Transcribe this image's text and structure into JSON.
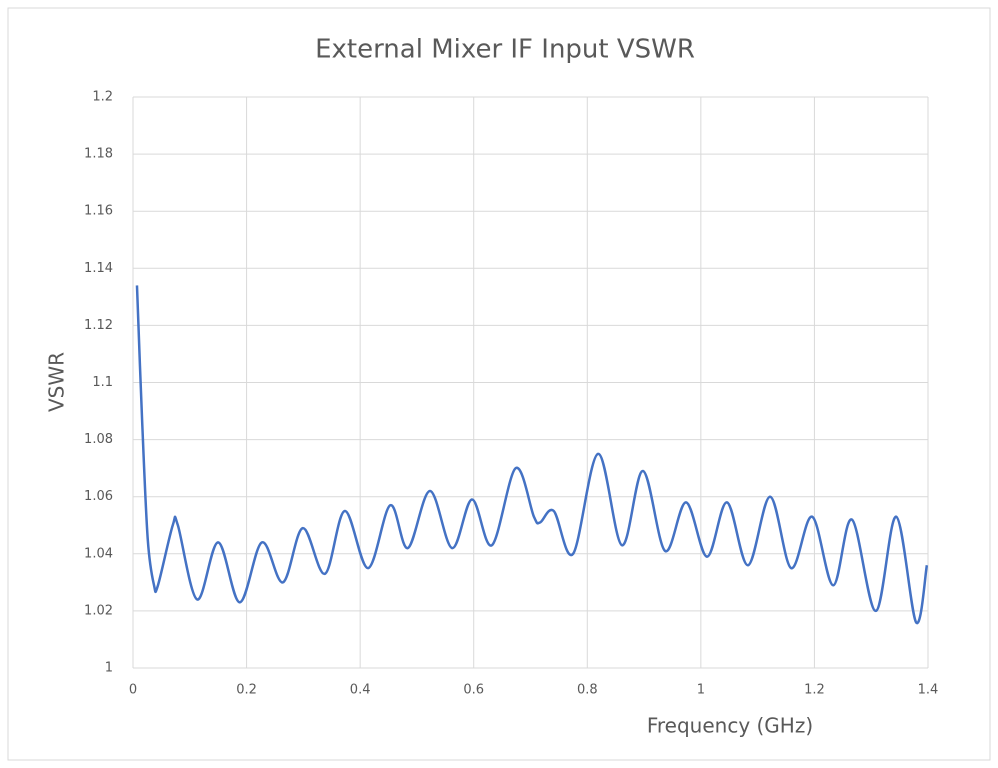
{
  "chart_data": {
    "type": "line",
    "title": "External Mixer IF Input VSWR",
    "x_label": "Frequency (GHz)",
    "y_label": "VSWR",
    "xlim": [
      0,
      1.4
    ],
    "xticks": [
      0,
      0.2,
      0.4,
      0.6,
      0.8,
      1,
      1.2,
      1.4
    ],
    "ylim": [
      1,
      1.2
    ],
    "yticks": [
      1,
      1.02,
      1.04,
      1.06,
      1.08,
      1.1,
      1.12,
      1.14,
      1.16,
      1.18,
      1.2
    ],
    "grid": true,
    "x": [
      0.007,
      0.016,
      0.026,
      0.037,
      0.044,
      0.07,
      0.079,
      0.113,
      0.15,
      0.188,
      0.227,
      0.264,
      0.299,
      0.338,
      0.373,
      0.414,
      0.453,
      0.484,
      0.523,
      0.562,
      0.597,
      0.632,
      0.674,
      0.706,
      0.717,
      0.741,
      0.775,
      0.819,
      0.861,
      0.898,
      0.937,
      0.974,
      1.011,
      1.046,
      1.083,
      1.122,
      1.159,
      1.196,
      1.233,
      1.266,
      1.308,
      1.344,
      1.379,
      1.398
    ],
    "series": [
      {
        "color": "#4472c4",
        "values": [
          1.134,
          1.087,
          1.045,
          1.029,
          1.029,
          1.05,
          1.05,
          1.024,
          1.044,
          1.023,
          1.044,
          1.03,
          1.049,
          1.033,
          1.055,
          1.035,
          1.057,
          1.042,
          1.062,
          1.042,
          1.059,
          1.043,
          1.07,
          1.053,
          1.051,
          1.055,
          1.04,
          1.075,
          1.043,
          1.069,
          1.041,
          1.058,
          1.039,
          1.058,
          1.036,
          1.06,
          1.035,
          1.053,
          1.029,
          1.052,
          1.02,
          1.053,
          1.016,
          1.036
        ]
      }
    ]
  }
}
